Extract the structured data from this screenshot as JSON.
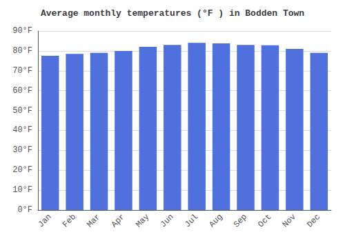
{
  "chart_data": {
    "type": "bar",
    "title": "Average monthly temperatures (°F ) in Bodden Town",
    "categories": [
      "Jan",
      "Feb",
      "Mar",
      "Apr",
      "May",
      "Jun",
      "Jul",
      "Aug",
      "Sep",
      "Oct",
      "Nov",
      "Dec"
    ],
    "values": [
      77.5,
      78.5,
      79.0,
      80.0,
      82.0,
      83.0,
      84.0,
      83.8,
      83.0,
      82.8,
      81.0,
      79.0
    ],
    "ylim": [
      0,
      90
    ],
    "yticks": [
      {
        "value": 0,
        "label": "0°F"
      },
      {
        "value": 10,
        "label": "10°F"
      },
      {
        "value": 20,
        "label": "20°F"
      },
      {
        "value": 30,
        "label": "30°F"
      },
      {
        "value": 40,
        "label": "40°F"
      },
      {
        "value": 50,
        "label": "50°F"
      },
      {
        "value": 60,
        "label": "60°F"
      },
      {
        "value": 70,
        "label": "70°F"
      },
      {
        "value": 80,
        "label": "80°F"
      },
      {
        "value": 90,
        "label": "90°F"
      }
    ],
    "grid": true
  }
}
